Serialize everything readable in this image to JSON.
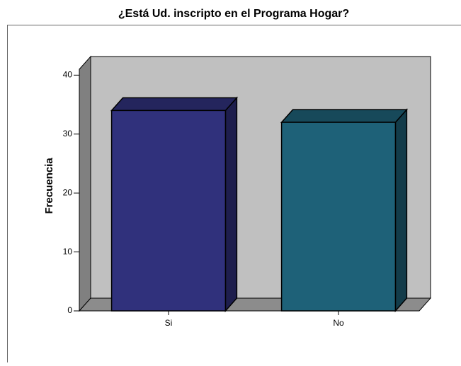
{
  "chart_data": {
    "type": "bar3d",
    "title": "¿Está Ud. inscripto en el Programa Hogar?",
    "y_label": "Frecuencia",
    "categories": [
      "Si",
      "No"
    ],
    "values": [
      34,
      32
    ],
    "colors": [
      "#30317c",
      "#1e6178"
    ],
    "ylim": [
      0,
      41
    ],
    "yticks": [
      0,
      10,
      20,
      30,
      40
    ]
  }
}
